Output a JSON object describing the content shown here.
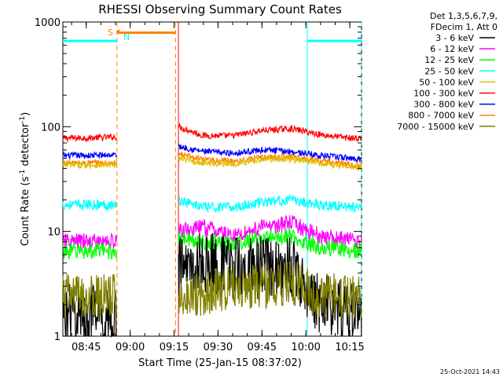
{
  "chart_data": {
    "type": "line",
    "title": "RHESSI Observing Summary Count Rates",
    "xlabel": "Start Time (25-Jan-15 08:37:02)",
    "ylabel_main": "Count Rate (s",
    "ylabel_sup1": "-1",
    "ylabel_mid": " detector",
    "ylabel_sup2": "-1",
    "ylabel_end": ")",
    "yscale": "log",
    "ylim": [
      1,
      1000
    ],
    "xlim_minutes": [
      37.03,
      139
    ],
    "x_ticks": [
      {
        "m": 45,
        "label": "08:45"
      },
      {
        "m": 60,
        "label": "09:00"
      },
      {
        "m": 75,
        "label": "09:15"
      },
      {
        "m": 90,
        "label": "09:30"
      },
      {
        "m": 105,
        "label": "09:45"
      },
      {
        "m": 120,
        "label": "10:00"
      },
      {
        "m": 135,
        "label": "10:15"
      }
    ],
    "y_ticks": [
      {
        "v": 1,
        "label": "1"
      },
      {
        "v": 10,
        "label": "10"
      },
      {
        "v": 100,
        "label": "100"
      },
      {
        "v": 1000,
        "label": "1000"
      }
    ],
    "legend": {
      "header1": "Det 1,3,5,6,7,9,",
      "header2": "FDecim 1, Att 0",
      "entries": [
        {
          "label": "3 - 6 keV",
          "color": "#000000"
        },
        {
          "label": "6 - 12 keV",
          "color": "#ff00ff"
        },
        {
          "label": "12 - 25 keV",
          "color": "#00ff00"
        },
        {
          "label": "25 - 50 keV",
          "color": "#00ffff"
        },
        {
          "label": "50 - 100 keV",
          "color": "#e0c000"
        },
        {
          "label": "100 - 300 keV",
          "color": "#ff0000"
        },
        {
          "label": "300 - 800 keV",
          "color": "#0000ff"
        },
        {
          "label": "800 - 7000 keV",
          "color": "#ff8000"
        },
        {
          "label": "7000 - 15000 keV",
          "color": "#808000"
        }
      ]
    },
    "segments": [
      [
        37.03,
        55.5
      ],
      [
        76.5,
        139
      ]
    ],
    "series": [
      {
        "name": "100 - 300 keV",
        "color": "#ff0000",
        "pts": [
          [
            37.03,
            78
          ],
          [
            45,
            78
          ],
          [
            55.5,
            80
          ],
          [
            76.5,
            100
          ],
          [
            85,
            82
          ],
          [
            95,
            82
          ],
          [
            105,
            92
          ],
          [
            115,
            96
          ],
          [
            125,
            84
          ],
          [
            139,
            76
          ]
        ]
      },
      {
        "name": "300 - 800 keV",
        "color": "#0000ff",
        "pts": [
          [
            37.03,
            53
          ],
          [
            45,
            53
          ],
          [
            55.5,
            54
          ],
          [
            76.5,
            65
          ],
          [
            85,
            58
          ],
          [
            95,
            56
          ],
          [
            105,
            60
          ],
          [
            115,
            58
          ],
          [
            125,
            53
          ],
          [
            139,
            49
          ]
        ]
      },
      {
        "name": "800 - 7000 keV",
        "color": "#ff8000",
        "pts": [
          [
            37.03,
            45
          ],
          [
            45,
            45
          ],
          [
            55.5,
            45
          ],
          [
            76.5,
            55
          ],
          [
            85,
            48
          ],
          [
            95,
            47
          ],
          [
            105,
            51
          ],
          [
            115,
            52
          ],
          [
            125,
            47
          ],
          [
            139,
            42
          ]
        ]
      },
      {
        "name": "50 - 100 keV",
        "color": "#e0c000",
        "pts": [
          [
            37.03,
            43
          ],
          [
            45,
            43
          ],
          [
            55.5,
            43
          ],
          [
            76.5,
            50
          ],
          [
            85,
            45
          ],
          [
            95,
            44
          ],
          [
            105,
            49
          ],
          [
            115,
            49
          ],
          [
            125,
            45
          ],
          [
            139,
            40
          ]
        ]
      },
      {
        "name": "25 - 50 keV",
        "color": "#00ffff",
        "pts": [
          [
            37.03,
            18
          ],
          [
            45,
            18
          ],
          [
            55.5,
            18
          ],
          [
            76.5,
            20
          ],
          [
            85,
            17
          ],
          [
            95,
            17
          ],
          [
            105,
            19
          ],
          [
            115,
            20
          ],
          [
            125,
            18
          ],
          [
            139,
            17
          ]
        ]
      },
      {
        "name": "6 - 12 keV",
        "color": "#ff00ff",
        "pts": [
          [
            37.03,
            8
          ],
          [
            45,
            8
          ],
          [
            55.5,
            8
          ],
          [
            76.5,
            10
          ],
          [
            85,
            11
          ],
          [
            95,
            9
          ],
          [
            105,
            11
          ],
          [
            115,
            12
          ],
          [
            125,
            9
          ],
          [
            139,
            8
          ]
        ]
      },
      {
        "name": "12 - 25 keV",
        "color": "#00ff00",
        "pts": [
          [
            37.03,
            6.5
          ],
          [
            45,
            6.5
          ],
          [
            55.5,
            6.5
          ],
          [
            76.5,
            8.5
          ],
          [
            85,
            8
          ],
          [
            95,
            7.5
          ],
          [
            105,
            8.5
          ],
          [
            115,
            9
          ],
          [
            125,
            7
          ],
          [
            139,
            6.5
          ]
        ]
      },
      {
        "name": "3 - 6 keV",
        "color": "#000000",
        "pts": [
          [
            37.03,
            1.6
          ],
          [
            45,
            1.6
          ],
          [
            55.5,
            1.5
          ],
          [
            76.5,
            4.5
          ],
          [
            85,
            5
          ],
          [
            95,
            4.5
          ],
          [
            105,
            4.5
          ],
          [
            115,
            4.5
          ],
          [
            125,
            2
          ],
          [
            139,
            1.6
          ]
        ]
      },
      {
        "name": "7000 - 15000 keV",
        "color": "#808000",
        "pts": [
          [
            37.03,
            2.4
          ],
          [
            45,
            2.4
          ],
          [
            55.5,
            2.4
          ],
          [
            76.5,
            2.4
          ],
          [
            85,
            2.6
          ],
          [
            95,
            3
          ],
          [
            105,
            3
          ],
          [
            115,
            3.2
          ],
          [
            125,
            2.4
          ],
          [
            139,
            2.4
          ]
        ]
      }
    ],
    "flags": [
      {
        "label": "S",
        "color": "#ff8000",
        "pts": [
          [
            55.5,
            800
          ],
          [
            56,
            815
          ],
          [
            56,
            790
          ],
          [
            75.5,
            790
          ]
        ]
      },
      {
        "label": "N",
        "color": "#00ffff",
        "pts": [
          [
            37.03,
            660
          ],
          [
            55.5,
            660
          ]
        ]
      },
      {
        "label": "",
        "color": "#00ffff",
        "pts": [
          [
            120.5,
            660
          ],
          [
            139,
            660
          ]
        ]
      }
    ],
    "vlines": [
      {
        "m": 55.5,
        "color": "#ff8000",
        "dash": true
      },
      {
        "m": 75.5,
        "color": "#ff8000",
        "dash": true
      },
      {
        "m": 76.5,
        "color": "#ff0000",
        "dash": false
      },
      {
        "m": 120.5,
        "color": "#00ffff",
        "dash": false
      },
      {
        "m": 139,
        "color": "#00ffff",
        "dash": true
      }
    ],
    "footer": "25-Oct-2021 14:43"
  }
}
